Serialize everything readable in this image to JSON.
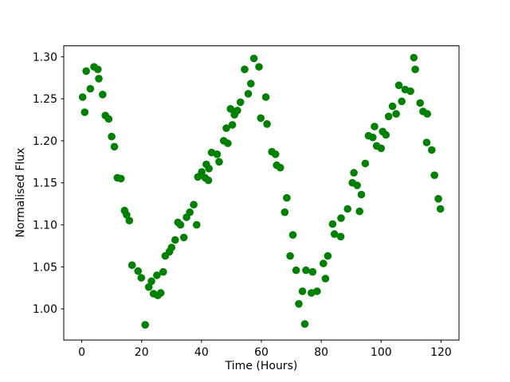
{
  "chart_data": {
    "type": "scatter",
    "title": "",
    "xlabel": "Time (Hours)",
    "ylabel": "Normalised Flux",
    "xlim": [
      -6.0,
      126.0
    ],
    "ylim": [
      0.963,
      1.313
    ],
    "grid": false,
    "legend": "none",
    "marker_color": "#008000",
    "axis_color": "#000000",
    "background_color": "#ffffff",
    "xticks": [
      0,
      20,
      40,
      60,
      80,
      100,
      120
    ],
    "xtick_labels": [
      "0",
      "20",
      "40",
      "60",
      "80",
      "100",
      "120"
    ],
    "yticks": [
      1.0,
      1.05,
      1.1,
      1.15,
      1.2,
      1.25,
      1.3
    ],
    "ytick_labels": [
      "1.00",
      "1.05",
      "1.10",
      "1.15",
      "1.20",
      "1.25",
      "1.30"
    ],
    "points": [
      [
        0.3,
        1.252
      ],
      [
        1.0,
        1.234
      ],
      [
        1.5,
        1.283
      ],
      [
        2.9,
        1.262
      ],
      [
        4.1,
        1.288
      ],
      [
        5.4,
        1.285
      ],
      [
        5.7,
        1.274
      ],
      [
        7.0,
        1.255
      ],
      [
        7.9,
        1.23
      ],
      [
        9.0,
        1.226
      ],
      [
        10.0,
        1.205
      ],
      [
        10.9,
        1.193
      ],
      [
        11.9,
        1.156
      ],
      [
        13.1,
        1.155
      ],
      [
        14.3,
        1.117
      ],
      [
        15.0,
        1.112
      ],
      [
        15.9,
        1.105
      ],
      [
        16.8,
        1.052
      ],
      [
        18.8,
        1.045
      ],
      [
        19.9,
        1.037
      ],
      [
        21.2,
        0.981
      ],
      [
        22.4,
        1.026
      ],
      [
        23.3,
        1.033
      ],
      [
        24.0,
        1.018
      ],
      [
        25.1,
        1.04
      ],
      [
        25.4,
        1.016
      ],
      [
        26.4,
        1.019
      ],
      [
        27.2,
        1.044
      ],
      [
        27.9,
        1.063
      ],
      [
        29.3,
        1.068
      ],
      [
        30.0,
        1.073
      ],
      [
        31.2,
        1.082
      ],
      [
        32.1,
        1.103
      ],
      [
        33.0,
        1.1
      ],
      [
        34.1,
        1.085
      ],
      [
        35.0,
        1.109
      ],
      [
        36.1,
        1.115
      ],
      [
        37.4,
        1.124
      ],
      [
        38.4,
        1.1
      ],
      [
        38.8,
        1.157
      ],
      [
        40.1,
        1.163
      ],
      [
        41.2,
        1.156
      ],
      [
        41.6,
        1.172
      ],
      [
        42.3,
        1.153
      ],
      [
        42.5,
        1.167
      ],
      [
        43.4,
        1.186
      ],
      [
        45.2,
        1.184
      ],
      [
        45.9,
        1.175
      ],
      [
        47.4,
        1.2
      ],
      [
        48.3,
        1.215
      ],
      [
        48.8,
        1.197
      ],
      [
        49.7,
        1.238
      ],
      [
        50.3,
        1.219
      ],
      [
        51.0,
        1.231
      ],
      [
        52.0,
        1.236
      ],
      [
        53.0,
        1.246
      ],
      [
        54.4,
        1.285
      ],
      [
        55.6,
        1.256
      ],
      [
        56.5,
        1.268
      ],
      [
        57.5,
        1.298
      ],
      [
        59.2,
        1.288
      ],
      [
        59.8,
        1.227
      ],
      [
        61.5,
        1.252
      ],
      [
        61.9,
        1.22
      ],
      [
        63.5,
        1.187
      ],
      [
        64.7,
        1.184
      ],
      [
        65.1,
        1.171
      ],
      [
        66.3,
        1.168
      ],
      [
        67.8,
        1.115
      ],
      [
        68.5,
        1.132
      ],
      [
        69.6,
        1.063
      ],
      [
        70.5,
        1.088
      ],
      [
        71.6,
        1.046
      ],
      [
        72.5,
        1.006
      ],
      [
        73.7,
        1.021
      ],
      [
        74.5,
        0.982
      ],
      [
        74.9,
        1.046
      ],
      [
        76.7,
        1.019
      ],
      [
        77.1,
        1.044
      ],
      [
        78.6,
        1.021
      ],
      [
        80.7,
        1.054
      ],
      [
        81.4,
        1.036
      ],
      [
        82.2,
        1.063
      ],
      [
        83.8,
        1.101
      ],
      [
        84.4,
        1.089
      ],
      [
        86.5,
        1.086
      ],
      [
        86.6,
        1.108
      ],
      [
        88.8,
        1.119
      ],
      [
        90.4,
        1.15
      ],
      [
        90.9,
        1.162
      ],
      [
        92.0,
        1.147
      ],
      [
        92.8,
        1.116
      ],
      [
        93.4,
        1.136
      ],
      [
        94.7,
        1.173
      ],
      [
        95.8,
        1.206
      ],
      [
        97.2,
        1.204
      ],
      [
        97.8,
        1.217
      ],
      [
        98.5,
        1.194
      ],
      [
        100.0,
        1.191
      ],
      [
        100.5,
        1.211
      ],
      [
        101.6,
        1.207
      ],
      [
        102.5,
        1.229
      ],
      [
        103.8,
        1.241
      ],
      [
        105.0,
        1.232
      ],
      [
        105.9,
        1.266
      ],
      [
        106.9,
        1.247
      ],
      [
        108.0,
        1.261
      ],
      [
        109.8,
        1.259
      ],
      [
        110.9,
        1.299
      ],
      [
        111.4,
        1.285
      ],
      [
        113.0,
        1.245
      ],
      [
        114.0,
        1.235
      ],
      [
        115.2,
        1.198
      ],
      [
        115.4,
        1.232
      ],
      [
        116.9,
        1.189
      ],
      [
        117.8,
        1.159
      ],
      [
        119.1,
        1.131
      ],
      [
        119.8,
        1.119
      ]
    ]
  }
}
